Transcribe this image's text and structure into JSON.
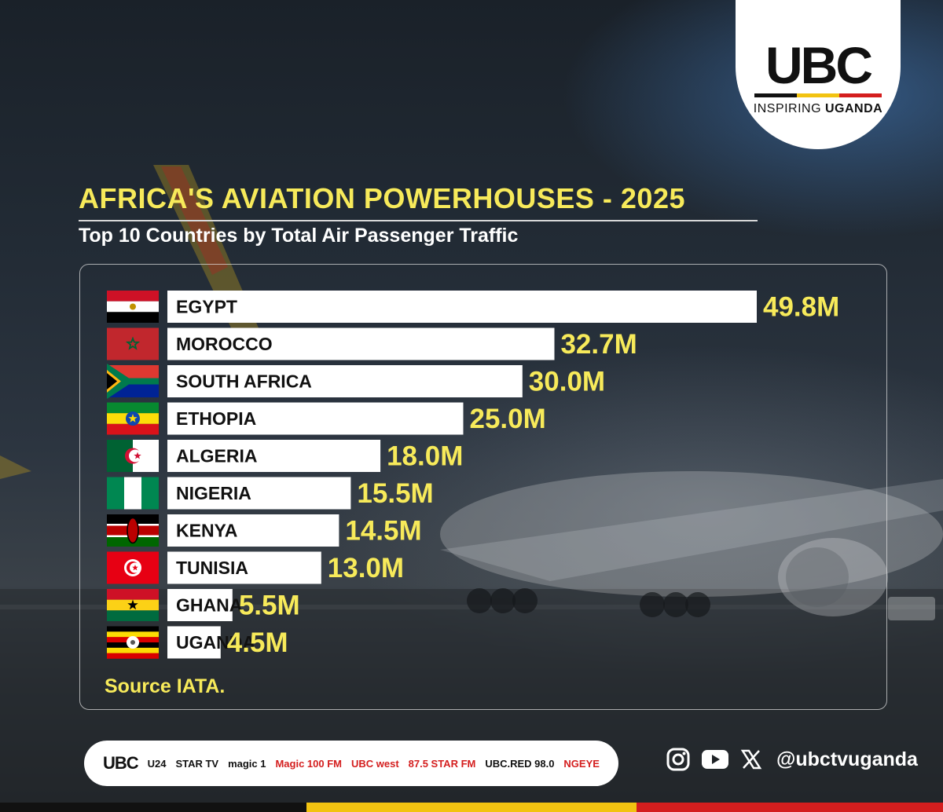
{
  "logo": {
    "main": "UBC",
    "tagline_a": "INSPIRING ",
    "tagline_b": "UGANDA",
    "stripe_colors": [
      "#111111",
      "#f2c311",
      "#d41e1e"
    ]
  },
  "title": "AFRICA'S AVIATION POWERHOUSES - 2025",
  "subtitle": "Top 10 Countries by Total Air Passenger Traffic",
  "chart_data": {
    "type": "bar",
    "orientation": "horizontal",
    "title": "AFRICA'S AVIATION POWERHOUSES - 2025",
    "subtitle": "Top 10 Countries by Total Air Passenger Traffic",
    "unit": "million passengers",
    "categories": [
      "EGYPT",
      "MOROCCO",
      "SOUTH AFRICA",
      "ETHOPIA",
      "ALGERIA",
      "NIGERIA",
      "KENYA",
      "TUNISIA",
      "GHANA",
      "UGANDA"
    ],
    "values": [
      49.8,
      32.7,
      30.0,
      25.0,
      18.0,
      15.5,
      14.5,
      13.0,
      5.5,
      4.5
    ],
    "value_labels": [
      "49.8M",
      "32.7M",
      "30.0M",
      "25.0M",
      "18.0M",
      "15.5M",
      "14.5M",
      "13.0M",
      "5.5M",
      "4.5M"
    ],
    "flags": [
      "egypt-flag",
      "morocco-flag",
      "south-africa-flag",
      "ethiopia-flag",
      "algeria-flag",
      "nigeria-flag",
      "kenya-flag",
      "tunisia-flag",
      "ghana-flag",
      "uganda-flag"
    ],
    "bar_color": "#ffffff",
    "value_label_color": "#f7ea5a",
    "source": "Source IATA."
  },
  "footer": {
    "brands": [
      "UBC",
      "U24",
      "STAR TV",
      "magic 1",
      "Magic 100 FM",
      "UBC west",
      "87.5 STAR FM",
      "UBC.RED 98.0",
      "NGEYE"
    ],
    "social_icons": [
      "instagram-icon",
      "youtube-icon",
      "x-icon"
    ],
    "handle": "@ubctvuganda"
  },
  "colors": {
    "accent_yellow": "#f7ea5a",
    "uganda_black": "#111111",
    "uganda_yellow": "#f2c311",
    "uganda_red": "#d41e1e"
  }
}
